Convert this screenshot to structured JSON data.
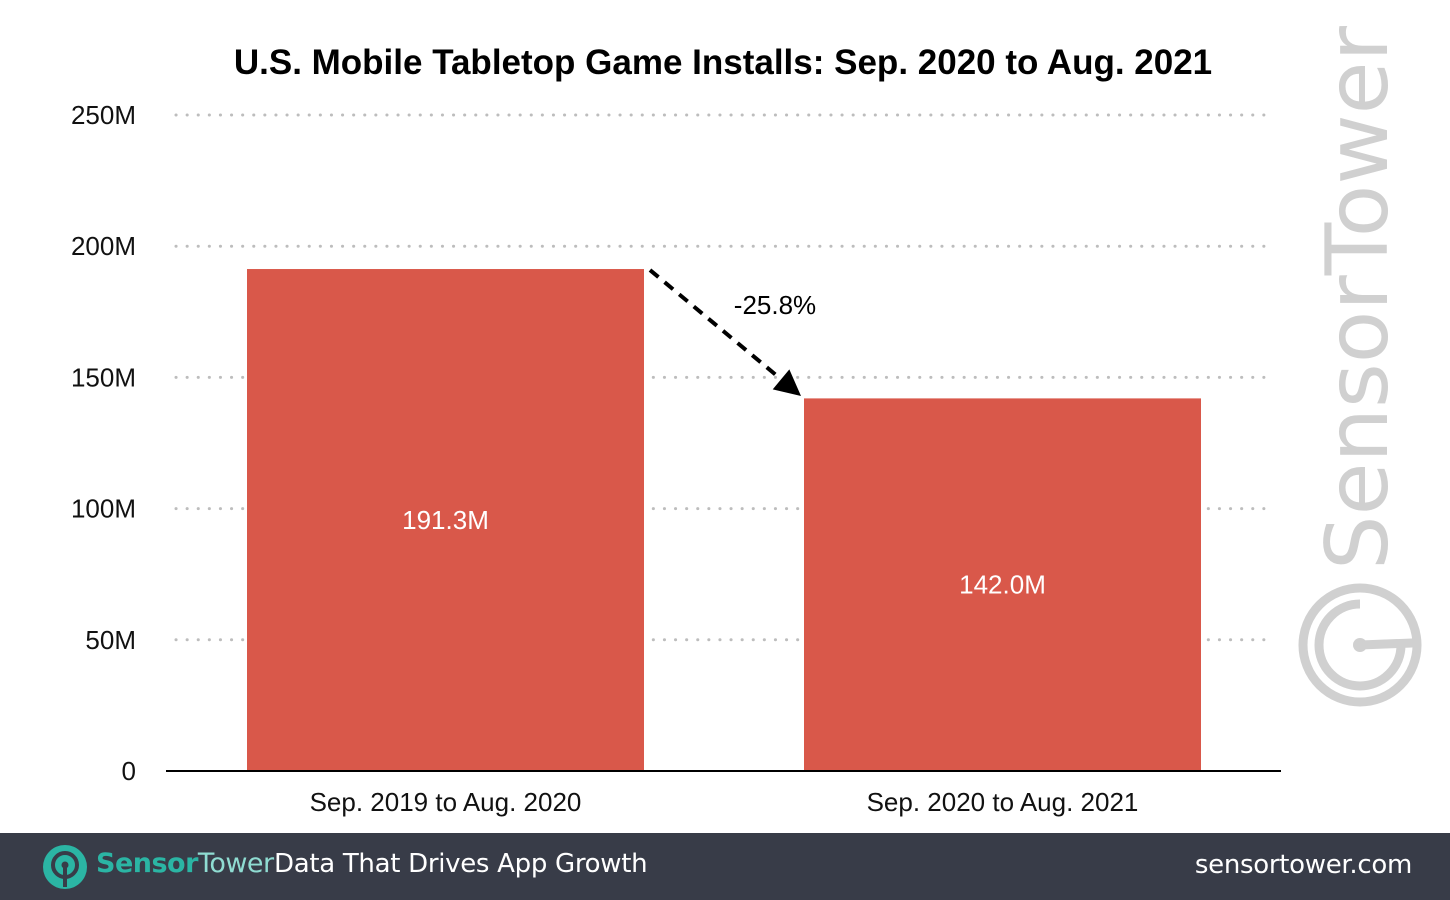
{
  "chart_data": {
    "type": "bar",
    "title": "U.S. Mobile Tabletop Game Installs: Sep. 2020 to Aug. 2021",
    "xlabel": "",
    "ylabel": "",
    "categories": [
      "Sep. 2019 to Aug. 2020",
      "Sep. 2020 to Aug. 2021"
    ],
    "values": [
      191.3,
      142.0
    ],
    "data_labels": [
      "191.3M",
      "142.0M"
    ],
    "ylim": [
      0,
      250
    ],
    "yticks": [
      0,
      50,
      100,
      150,
      200,
      250
    ],
    "ytick_labels": [
      "0",
      "50M",
      "100M",
      "150M",
      "200M",
      "250M"
    ],
    "grid": true,
    "grid_style": "dotted",
    "bar_color": "#d9584a",
    "annotation": {
      "text": "-25.8%",
      "type": "dashed-arrow",
      "from_category": 0,
      "to_category": 1
    },
    "legend": "none"
  },
  "watermark": {
    "text": "SensorTower"
  },
  "footer": {
    "brand_part1": "Sensor",
    "brand_part2": "Tower",
    "tagline": "Data That Drives App Growth",
    "website": "sensortower.com",
    "background": "#383c48",
    "brand_color": "#2bb5a4"
  }
}
